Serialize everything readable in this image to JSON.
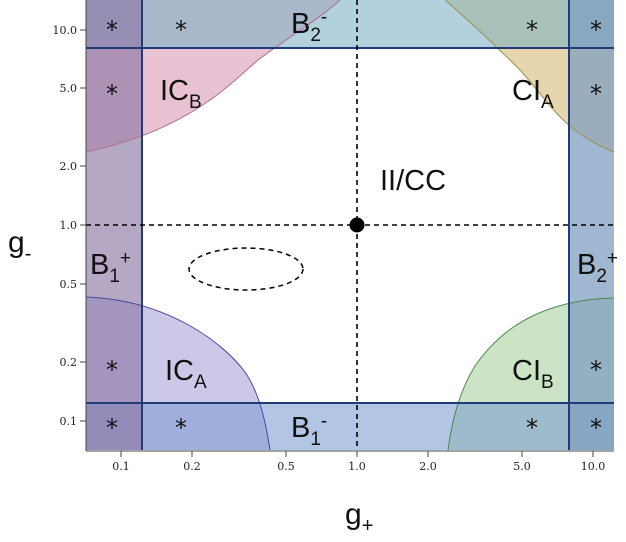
{
  "axes": {
    "x_label": {
      "main": "g",
      "sub": "+"
    },
    "y_label": {
      "main": "g",
      "sub": "-"
    },
    "x_ticks": [
      "0.1",
      "0.2",
      "0.5",
      "1.0",
      "2.0",
      "5.0",
      "10.0"
    ],
    "y_ticks": [
      "10.0",
      "5.0",
      "2.0",
      "1.0",
      "0.5",
      "0.2",
      "0.1"
    ],
    "scale": "log-log"
  },
  "regions": {
    "ic_b": {
      "main": "IC",
      "sub": "B"
    },
    "ci_a": {
      "main": "CI",
      "sub": "A"
    },
    "ic_a": {
      "main": "IC",
      "sub": "A"
    },
    "ci_b": {
      "main": "CI",
      "sub": "B"
    },
    "center": {
      "text": "II/CC"
    },
    "b2_minus": {
      "main": "B",
      "sub": "2",
      "sup": "-"
    },
    "b1_minus": {
      "main": "B",
      "sub": "1",
      "sup": "-"
    },
    "b1_plus": {
      "main": "B",
      "sub": "1",
      "sup": "+"
    },
    "b2_plus": {
      "main": "B",
      "sub": "2",
      "sup": "+"
    }
  },
  "star_symbol": "*",
  "colors": {
    "pink": "#e4b6ca",
    "olive": "#e0cf9f",
    "lavender": "#c6c2e6",
    "green": "#c7e0c0",
    "purple_band": "#8e7aa6",
    "teal_band": "#7fb2c4",
    "blue_band": "#7f9fd2",
    "steel_band": "#7f9fc0",
    "boundary": "#1f3b78"
  },
  "critical_point": {
    "g_plus": 1.0,
    "g_minus": 1.0
  }
}
